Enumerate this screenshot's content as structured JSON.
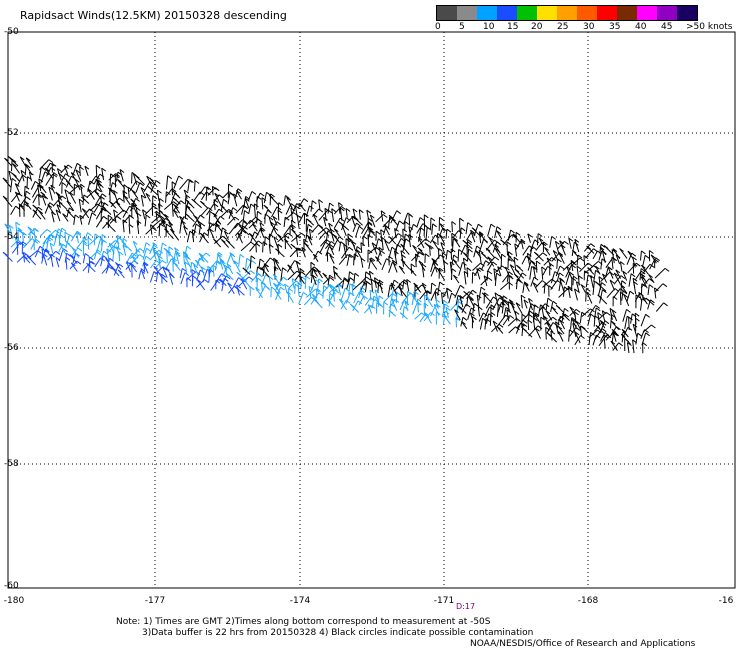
{
  "title": "Rapidsact Winds(12.5KM) 20150328 descending",
  "legend": {
    "colors": [
      "#4a4a4a",
      "#8a8a8a",
      "#00a2ff",
      "#1a4dff",
      "#00c000",
      "#ffe000",
      "#ffa000",
      "#ff5a00",
      "#ff0000",
      "#7a2a00",
      "#ff00ff",
      "#9000c0",
      "#1a0060"
    ],
    "labels": [
      "0",
      "5",
      "10",
      "15",
      "20",
      "25",
      "30",
      "35",
      "40",
      "45",
      ">50 knots"
    ]
  },
  "axes": {
    "lat_labels": [
      "-50",
      "-52",
      "-54",
      "-56",
      "-58",
      "-60"
    ],
    "lon_labels": [
      "-180",
      "-177",
      "-174",
      "-171",
      "-168",
      "-16"
    ]
  },
  "orbit_time": "D:17",
  "notes": {
    "line1": "Note: 1) Times are GMT 2)Times along bottom correspond to measurement at -50S",
    "line2": "3)Data buffer is 22 hrs from 20150328 4) Black circles indicate possible contamination",
    "line3": "NOAA/NESDIS/Office of Research and Applications"
  }
}
